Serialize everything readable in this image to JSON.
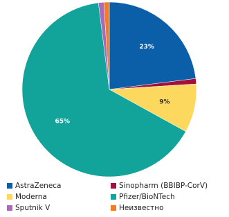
{
  "chart_data": {
    "type": "pie",
    "categories": [
      "AstraZeneca",
      "Sinopharm (BBIBP-CorV)",
      "Moderna",
      "Pfizer/BioNTech",
      "Sputnik V",
      "Неизвестно"
    ],
    "values": [
      23,
      1,
      9,
      65,
      1,
      1
    ],
    "value_labels": [
      "23%",
      null,
      "9%",
      "65%",
      null,
      null
    ],
    "colors": [
      "#0b5ea8",
      "#a3103c",
      "#fdd85e",
      "#12a49a",
      "#a96ab8",
      "#f47b20"
    ]
  }
}
